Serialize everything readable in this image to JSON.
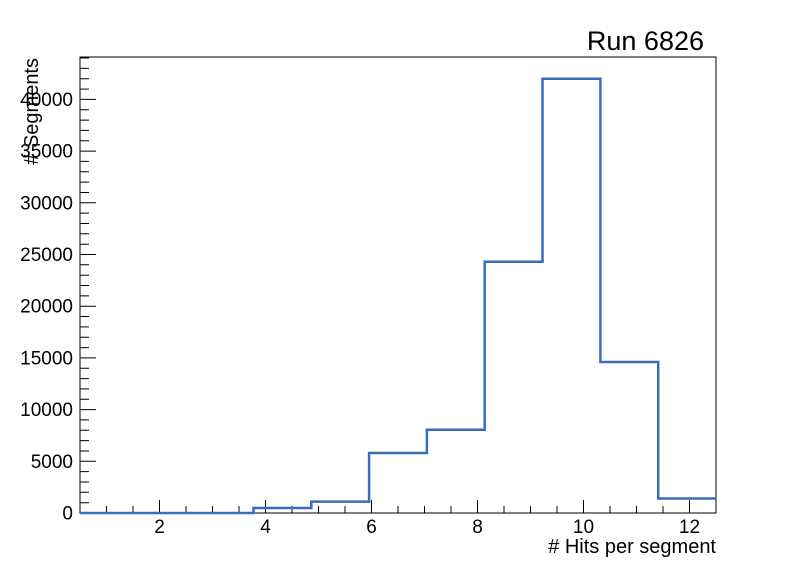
{
  "chart_data": {
    "type": "bar",
    "subtype": "step-histogram",
    "title": "Run 6826",
    "xlabel": "# Hits per segment",
    "ylabel": "# Segments",
    "xlim": [
      0.5,
      12.5
    ],
    "ylim": [
      0,
      44100
    ],
    "n_bins": 11,
    "bin_edges": [
      0.5,
      1.591,
      2.682,
      3.773,
      4.864,
      5.955,
      7.045,
      8.136,
      9.227,
      10.318,
      11.409,
      12.5
    ],
    "counts": [
      0,
      0,
      0,
      480,
      1100,
      5800,
      8050,
      24300,
      42000,
      14600,
      1400
    ],
    "x_major_ticks": [
      2,
      4,
      6,
      8,
      10,
      12
    ],
    "x_minor_tick_step": 0.5,
    "y_major_ticks": [
      0,
      5000,
      10000,
      15000,
      20000,
      25000,
      30000,
      35000,
      40000
    ],
    "y_minor_tick_step": 1000,
    "grid": false,
    "legend": false,
    "line_color": "#3a6cbd",
    "frame_color": "#000000",
    "background_color": "#ffffff"
  }
}
